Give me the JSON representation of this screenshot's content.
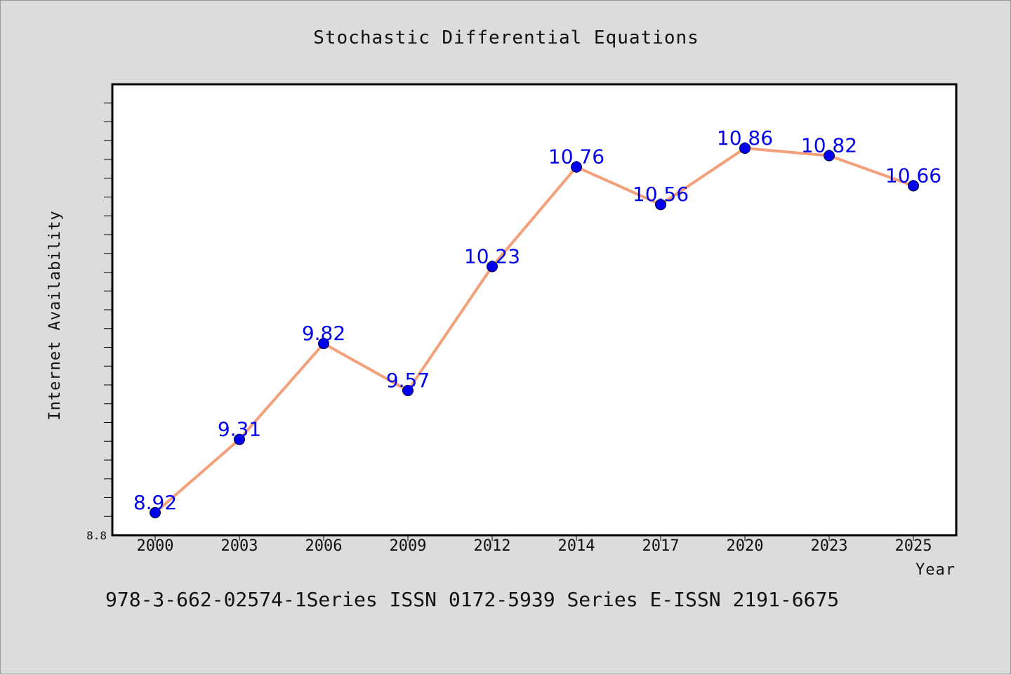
{
  "chart_data": {
    "type": "line",
    "title": "Stochastic Differential Equations",
    "xlabel": "Year",
    "ylabel": "Internet Availability",
    "categories": [
      "2000",
      "2003",
      "2006",
      "2009",
      "2012",
      "2014",
      "2017",
      "2020",
      "2023",
      "2025"
    ],
    "series": [
      {
        "values": [
          8.92,
          9.31,
          9.82,
          9.57,
          10.23,
          10.76,
          10.56,
          10.86,
          10.82,
          10.66
        ],
        "data_labels": [
          "8.92",
          "9.31",
          "9.82",
          "9.57",
          "10.23",
          "10.76",
          "10.56",
          "10.86",
          "10.82",
          "10.66"
        ],
        "line_color": "#f4a07a",
        "marker_color": "#0000ee"
      }
    ],
    "ylim": [
      8.8,
      11.2
    ],
    "y_tick_labels": [
      "8.8"
    ],
    "y_minor_tick_step": 0.1,
    "grid": false,
    "legend": "none",
    "footer": "978-3-662-02574-1Series ISSN 0172-5939 Series E-ISSN 2191-6675",
    "colors": {
      "background": "#dcdcdc",
      "plot_background": "#ffffff",
      "axis": "#000000",
      "label_text": "#0000ee"
    }
  }
}
